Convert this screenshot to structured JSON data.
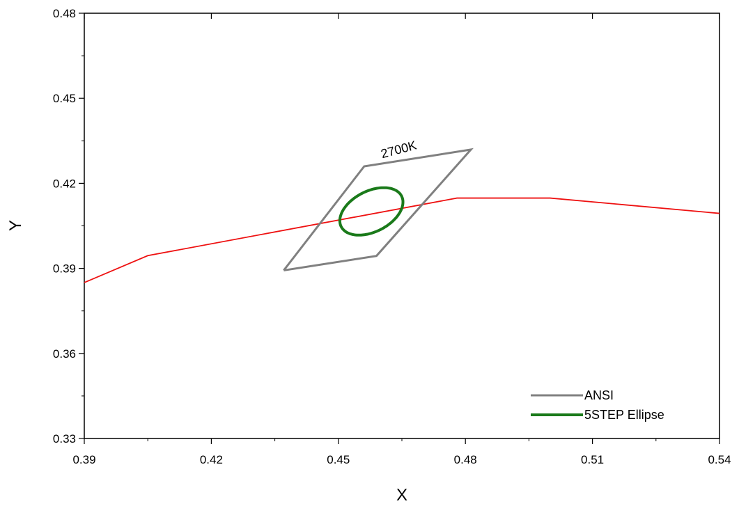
{
  "chart_data": {
    "type": "line",
    "xlabel": "X",
    "ylabel": "Y",
    "xlim": [
      0.39,
      0.54
    ],
    "ylim": [
      0.33,
      0.48
    ],
    "xticks": [
      "0.39",
      "0.42",
      "0.45",
      "0.48",
      "0.51",
      "0.54"
    ],
    "yticks": [
      "0.33",
      "0.36",
      "0.39",
      "0.42",
      "0.45",
      "0.48"
    ],
    "grid": false,
    "legend_position": "bottom-right",
    "series": [
      {
        "name": "",
        "color": "#ee1111",
        "x": [
          0.39,
          0.405,
          0.478,
          0.5,
          0.54
        ],
        "y": [
          0.385,
          0.3945,
          0.4148,
          0.4148,
          0.4094
        ]
      },
      {
        "name": "ANSI",
        "color": "#808080",
        "x": [
          0.4371,
          0.4561,
          0.4813,
          0.459,
          0.4371
        ],
        "y": [
          0.3893,
          0.426,
          0.4319,
          0.3944,
          0.3893
        ]
      },
      {
        "name": "5STEP Ellipse",
        "color": "#1a7a1a",
        "ellipse": {
          "cx": 0.4578,
          "cy": 0.4101,
          "a": 0.0094,
          "b": 0.0061,
          "angle_deg": 53.2
        }
      }
    ],
    "annotations": [
      {
        "text": "2700K",
        "x": 0.4645,
        "y": 0.4305,
        "rotation": -15
      }
    ]
  }
}
